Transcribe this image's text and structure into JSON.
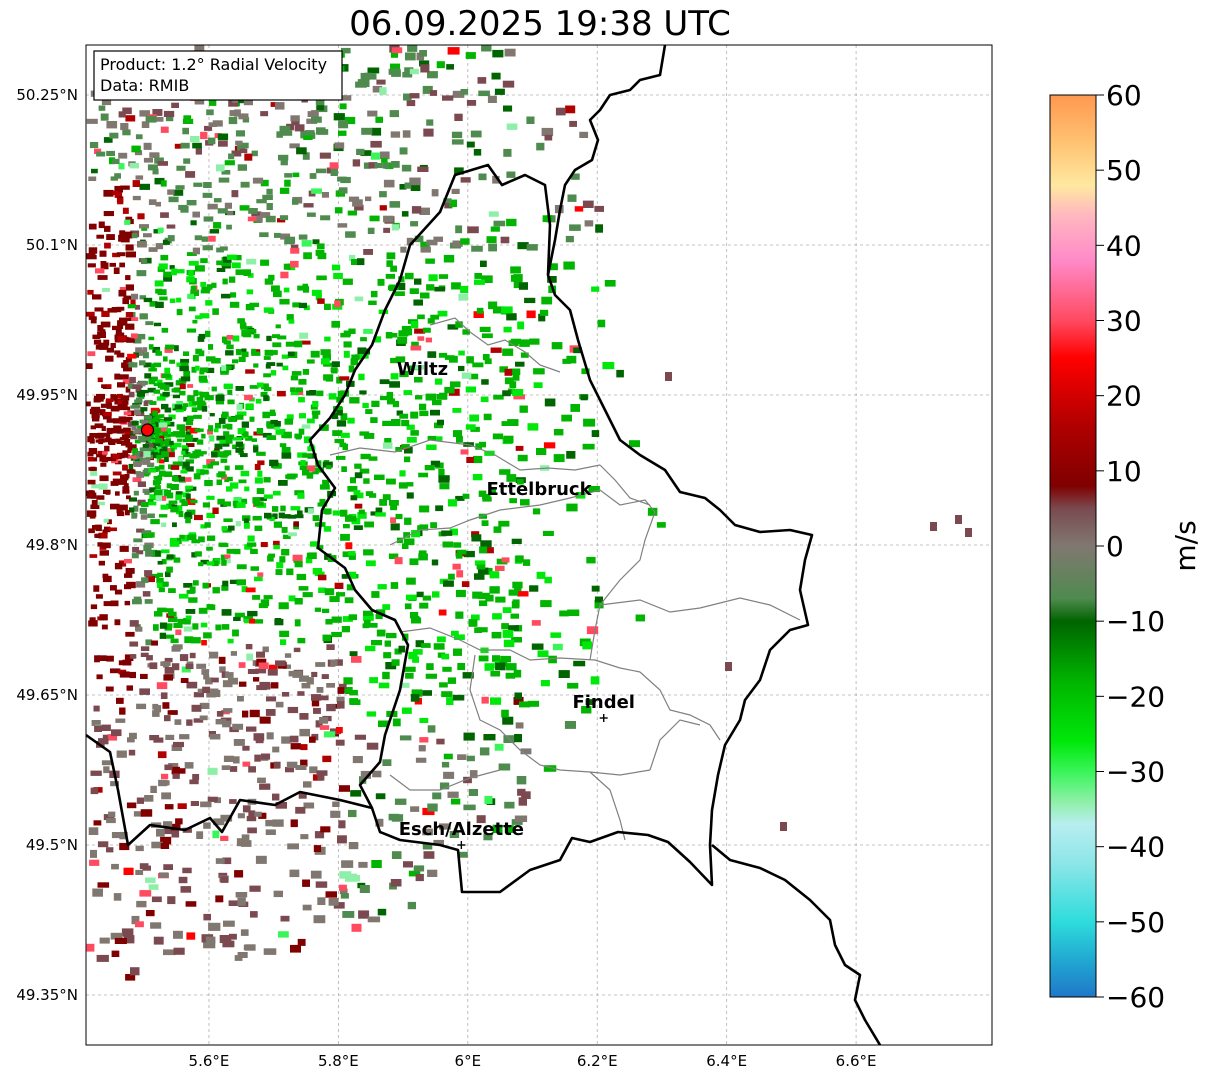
{
  "title": "06.09.2025 19:38 UTC",
  "info_box": {
    "product": "Product: 1.2° Radial Velocity",
    "data_source": "Data: RMIB"
  },
  "axes": {
    "lon_range": [
      5.41,
      6.81
    ],
    "lat_range": [
      49.3,
      50.3
    ],
    "lon_ticks": [
      {
        "value": 5.6,
        "label": "5.6°E"
      },
      {
        "value": 5.8,
        "label": "5.8°E"
      },
      {
        "value": 6.0,
        "label": "6°E"
      },
      {
        "value": 6.2,
        "label": "6.2°E"
      },
      {
        "value": 6.4,
        "label": "6.4°E"
      },
      {
        "value": 6.6,
        "label": "6.6°E"
      }
    ],
    "lat_ticks": [
      {
        "value": 50.25,
        "label": "50.25°N"
      },
      {
        "value": 50.1,
        "label": "50.1°N"
      },
      {
        "value": 49.95,
        "label": "49.95°N"
      },
      {
        "value": 49.8,
        "label": "49.8°N"
      },
      {
        "value": 49.65,
        "label": "49.65°N"
      },
      {
        "value": 49.5,
        "label": "49.5°N"
      },
      {
        "value": 49.35,
        "label": "49.35°N"
      }
    ],
    "grid": true
  },
  "radar_site": {
    "lon": 5.505,
    "lat": 49.915,
    "color": "#ff0000"
  },
  "places": [
    {
      "name": "Wiltz",
      "lon": 5.93,
      "lat": 49.97,
      "marker": false
    },
    {
      "name": "Ettelbruck",
      "lon": 6.11,
      "lat": 49.85,
      "marker": false
    },
    {
      "name": "Findel",
      "lon": 6.21,
      "lat": 49.627,
      "marker": true
    },
    {
      "name": "Esch/Alzette",
      "lon": 5.99,
      "lat": 49.5,
      "marker": true
    }
  ],
  "colorbar": {
    "label": "m/s",
    "min": -60,
    "max": 60,
    "ticks": [
      {
        "value": 60,
        "label": "60"
      },
      {
        "value": 50,
        "label": "50"
      },
      {
        "value": 40,
        "label": "40"
      },
      {
        "value": 30,
        "label": "30"
      },
      {
        "value": 20,
        "label": "20"
      },
      {
        "value": 10,
        "label": "10"
      },
      {
        "value": 0,
        "label": "0"
      },
      {
        "value": -10,
        "label": "−10"
      },
      {
        "value": -20,
        "label": "−20"
      },
      {
        "value": -30,
        "label": "−30"
      },
      {
        "value": -40,
        "label": "−40"
      },
      {
        "value": -50,
        "label": "−50"
      },
      {
        "value": -60,
        "label": "−60"
      }
    ],
    "stops": [
      {
        "value": -60,
        "color": "#1f78c8"
      },
      {
        "value": -55,
        "color": "#21a9d2"
      },
      {
        "value": -50,
        "color": "#2edcdc"
      },
      {
        "value": -42,
        "color": "#8fe6e8"
      },
      {
        "value": -37,
        "color": "#b8eef0"
      },
      {
        "value": -34,
        "color": "#8ef0a8"
      },
      {
        "value": -30,
        "color": "#39f559"
      },
      {
        "value": -26,
        "color": "#00e80a"
      },
      {
        "value": -18,
        "color": "#00b400"
      },
      {
        "value": -10,
        "color": "#006400"
      },
      {
        "value": -7,
        "color": "#4f8a4f"
      },
      {
        "value": 0,
        "color": "#807870"
      },
      {
        "value": 5,
        "color": "#7a4a50"
      },
      {
        "value": 8,
        "color": "#800000"
      },
      {
        "value": 16,
        "color": "#b00000"
      },
      {
        "value": 25,
        "color": "#ff0000"
      },
      {
        "value": 30,
        "color": "#ff4a60"
      },
      {
        "value": 38,
        "color": "#ff8ac8"
      },
      {
        "value": 44,
        "color": "#ffb8c0"
      },
      {
        "value": 48,
        "color": "#ffe8a0"
      },
      {
        "value": 54,
        "color": "#ffc070"
      },
      {
        "value": 60,
        "color": "#ff9850"
      }
    ]
  }
}
